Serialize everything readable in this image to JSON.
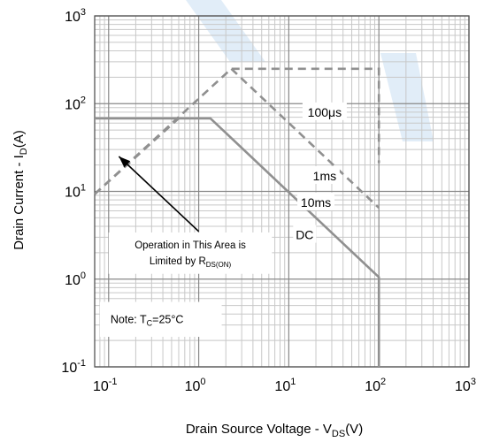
{
  "watermark_color": "#c9def2",
  "chart_data": {
    "type": "line",
    "title": "",
    "xlabel": "Drain Source Voltage - V",
    "xlabel_sub": "DS",
    "xlabel_unit": "(V)",
    "ylabel": "Drain Current - I",
    "ylabel_sub": "D",
    "ylabel_unit": "(A)",
    "xscale": "log",
    "yscale": "log",
    "xlim": [
      0.07,
      1000
    ],
    "ylim": [
      0.1,
      1000
    ],
    "grid": true,
    "x_ticks": [
      {
        "base": "10",
        "exp": "-1",
        "value": 0.1
      },
      {
        "base": "10",
        "exp": "0",
        "value": 1
      },
      {
        "base": "10",
        "exp": "1",
        "value": 10
      },
      {
        "base": "10",
        "exp": "2",
        "value": 100
      },
      {
        "base": "10",
        "exp": "3",
        "value": 1000
      }
    ],
    "y_ticks": [
      {
        "base": "10",
        "exp": "-1",
        "value": 0.1
      },
      {
        "base": "10",
        "exp": "0",
        "value": 1
      },
      {
        "base": "10",
        "exp": "1",
        "value": 10
      },
      {
        "base": "10",
        "exp": "2",
        "value": 100
      },
      {
        "base": "10",
        "exp": "3",
        "value": 1000
      }
    ],
    "series": [
      {
        "name": "100μs",
        "style": "dashed",
        "points": [
          [
            0.07,
            9.3
          ],
          [
            2.3,
            250
          ],
          [
            100,
            250
          ],
          [
            100,
            21
          ]
        ]
      },
      {
        "name": "1ms",
        "style": "dashed",
        "points": [
          [
            2.3,
            250
          ],
          [
            100,
            6.5
          ]
        ]
      },
      {
        "name": "10ms",
        "style": "dashed",
        "points": [
          [
            0.07,
            9.3
          ],
          [
            0.6,
            68
          ]
        ]
      },
      {
        "name": "DC",
        "style": "solid",
        "points": [
          [
            0.07,
            68
          ],
          [
            1.35,
            68
          ],
          [
            100,
            1.05
          ],
          [
            100,
            0.1
          ]
        ]
      }
    ],
    "series_labels": [
      {
        "series": "100μs",
        "text": "100μs",
        "x": 25,
        "y": 80
      },
      {
        "series": "1ms",
        "text": "1ms",
        "x": 25,
        "y": 15
      },
      {
        "series": "10ms",
        "text": "10ms",
        "x": 20,
        "y": 7.5
      },
      {
        "series": "DC",
        "text": "DC",
        "x": 15,
        "y": 3.2
      }
    ],
    "annotations": [
      {
        "kind": "callout",
        "line1": "Operation in This Area is",
        "line2_prefix": "Limited by R",
        "line2_sub": "DS(ON)",
        "box": {
          "x0": 0.1,
          "x1": 6.5,
          "y0": 1.15,
          "y1": 3.4
        },
        "arrow_from": [
          1.0,
          3.5
        ],
        "arrow_to": [
          0.13,
          25
        ]
      },
      {
        "kind": "note",
        "prefix": "Note: T",
        "sub": "C",
        "suffix": "=25°C",
        "box": {
          "x0": 0.08,
          "x1": 1.8,
          "y0": 0.22,
          "y1": 0.55
        }
      }
    ],
    "colors": {
      "major_grid": "#888888",
      "minor_grid": "#c8c8c8",
      "curve": "#909090",
      "text": "#000000",
      "axis": "#555555"
    }
  }
}
